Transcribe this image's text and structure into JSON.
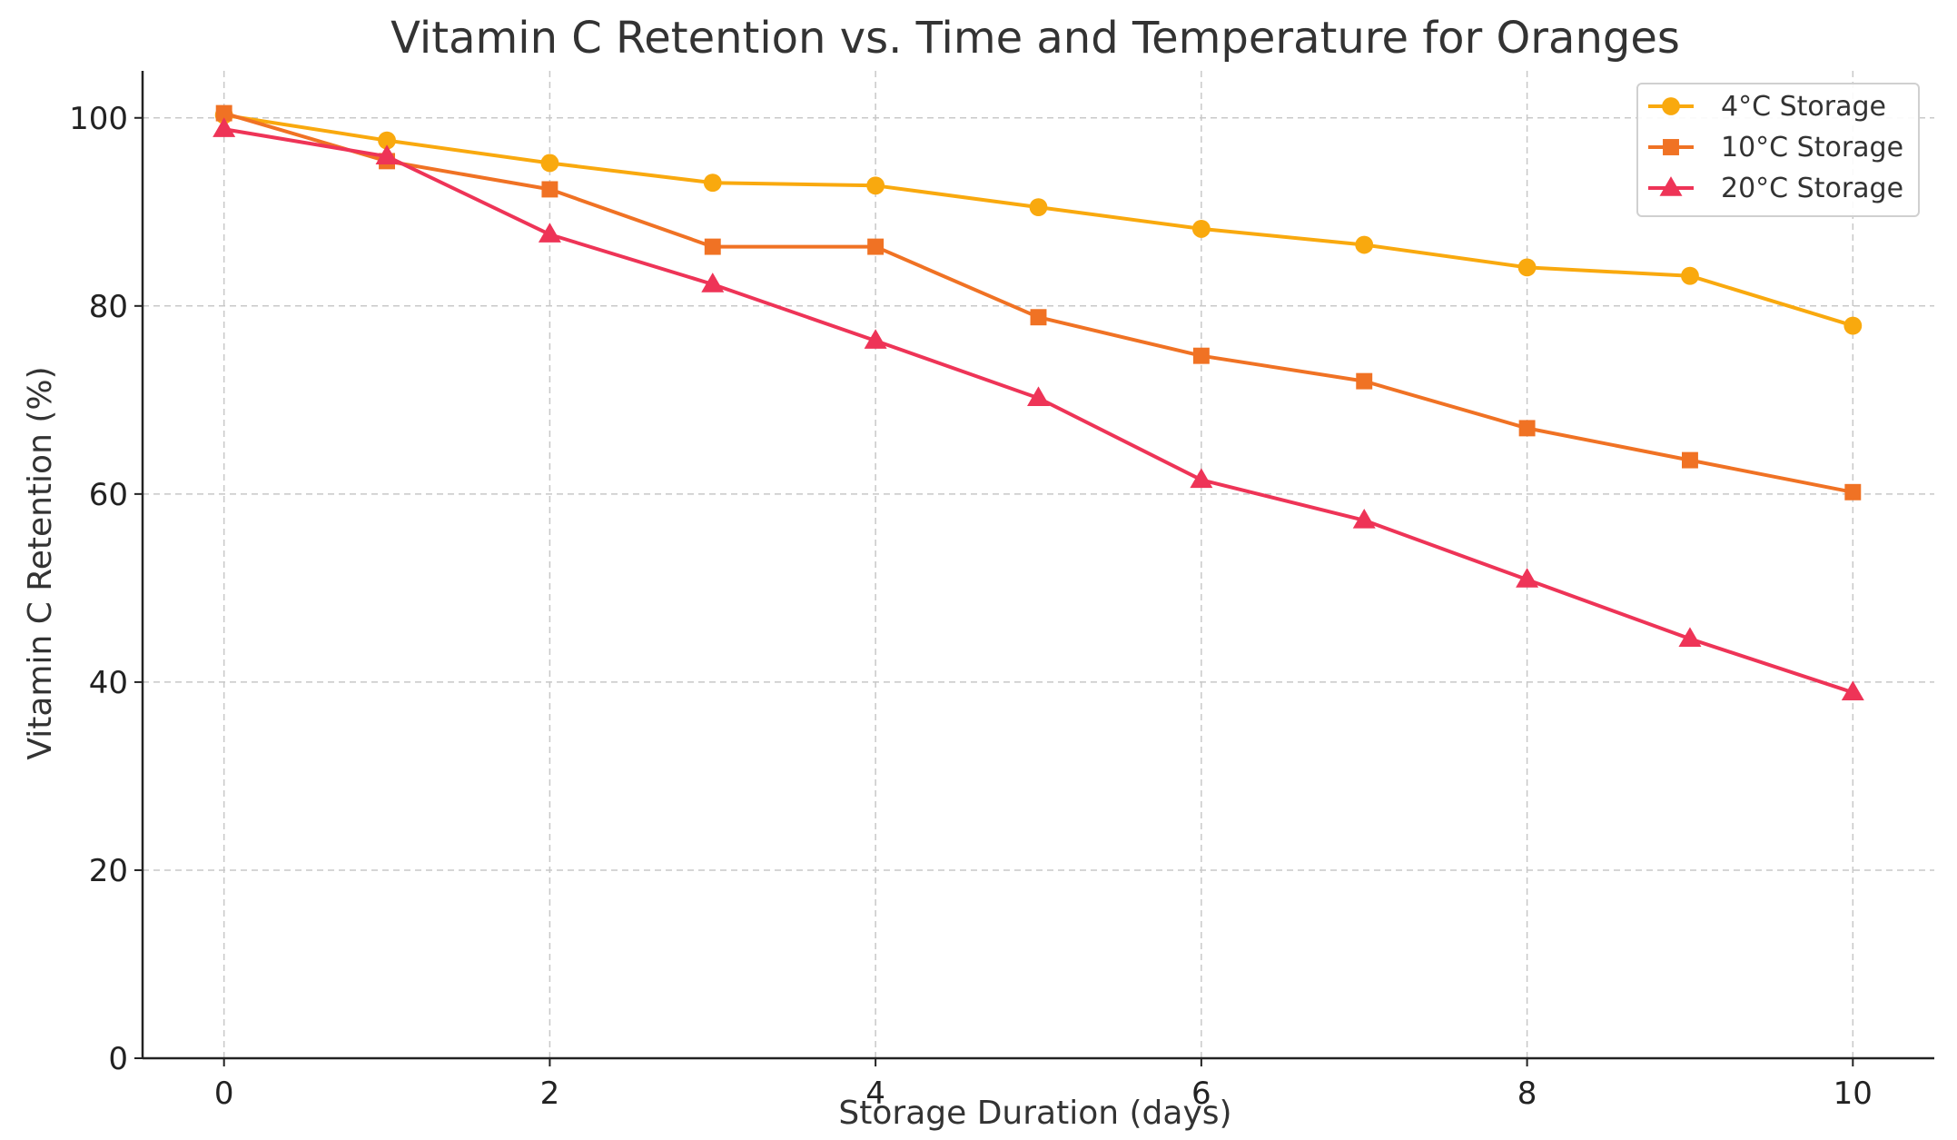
{
  "chart_data": {
    "type": "line",
    "title": "Vitamin C Retention vs. Time and Temperature for Oranges",
    "xlabel": "Storage Duration (days)",
    "ylabel": "Vitamin C Retention (%)",
    "xlim": [
      -0.5,
      10.5
    ],
    "ylim": [
      0,
      105
    ],
    "xticks": [
      0,
      2,
      4,
      6,
      8,
      10
    ],
    "yticks": [
      0,
      20,
      40,
      60,
      80,
      100
    ],
    "grid": true,
    "legend_position": "top-right",
    "x": [
      0,
      1,
      2,
      3,
      4,
      5,
      6,
      7,
      8,
      9,
      10
    ],
    "series": [
      {
        "name": "4°C Storage",
        "color": "#f9a90e",
        "marker": "circle",
        "values": [
          100.3,
          97.6,
          95.2,
          93.1,
          92.8,
          90.5,
          88.2,
          86.5,
          84.1,
          83.2,
          77.9
        ]
      },
      {
        "name": "10°C Storage",
        "color": "#f07224",
        "marker": "square",
        "values": [
          100.5,
          95.4,
          92.4,
          86.3,
          86.3,
          78.8,
          74.7,
          72.0,
          67.0,
          63.6,
          60.2
        ]
      },
      {
        "name": "20°C Storage",
        "color": "#ee3457",
        "marker": "triangle",
        "values": [
          98.8,
          95.9,
          87.6,
          82.3,
          76.3,
          70.2,
          61.5,
          57.2,
          50.9,
          44.6,
          38.9
        ]
      }
    ]
  }
}
